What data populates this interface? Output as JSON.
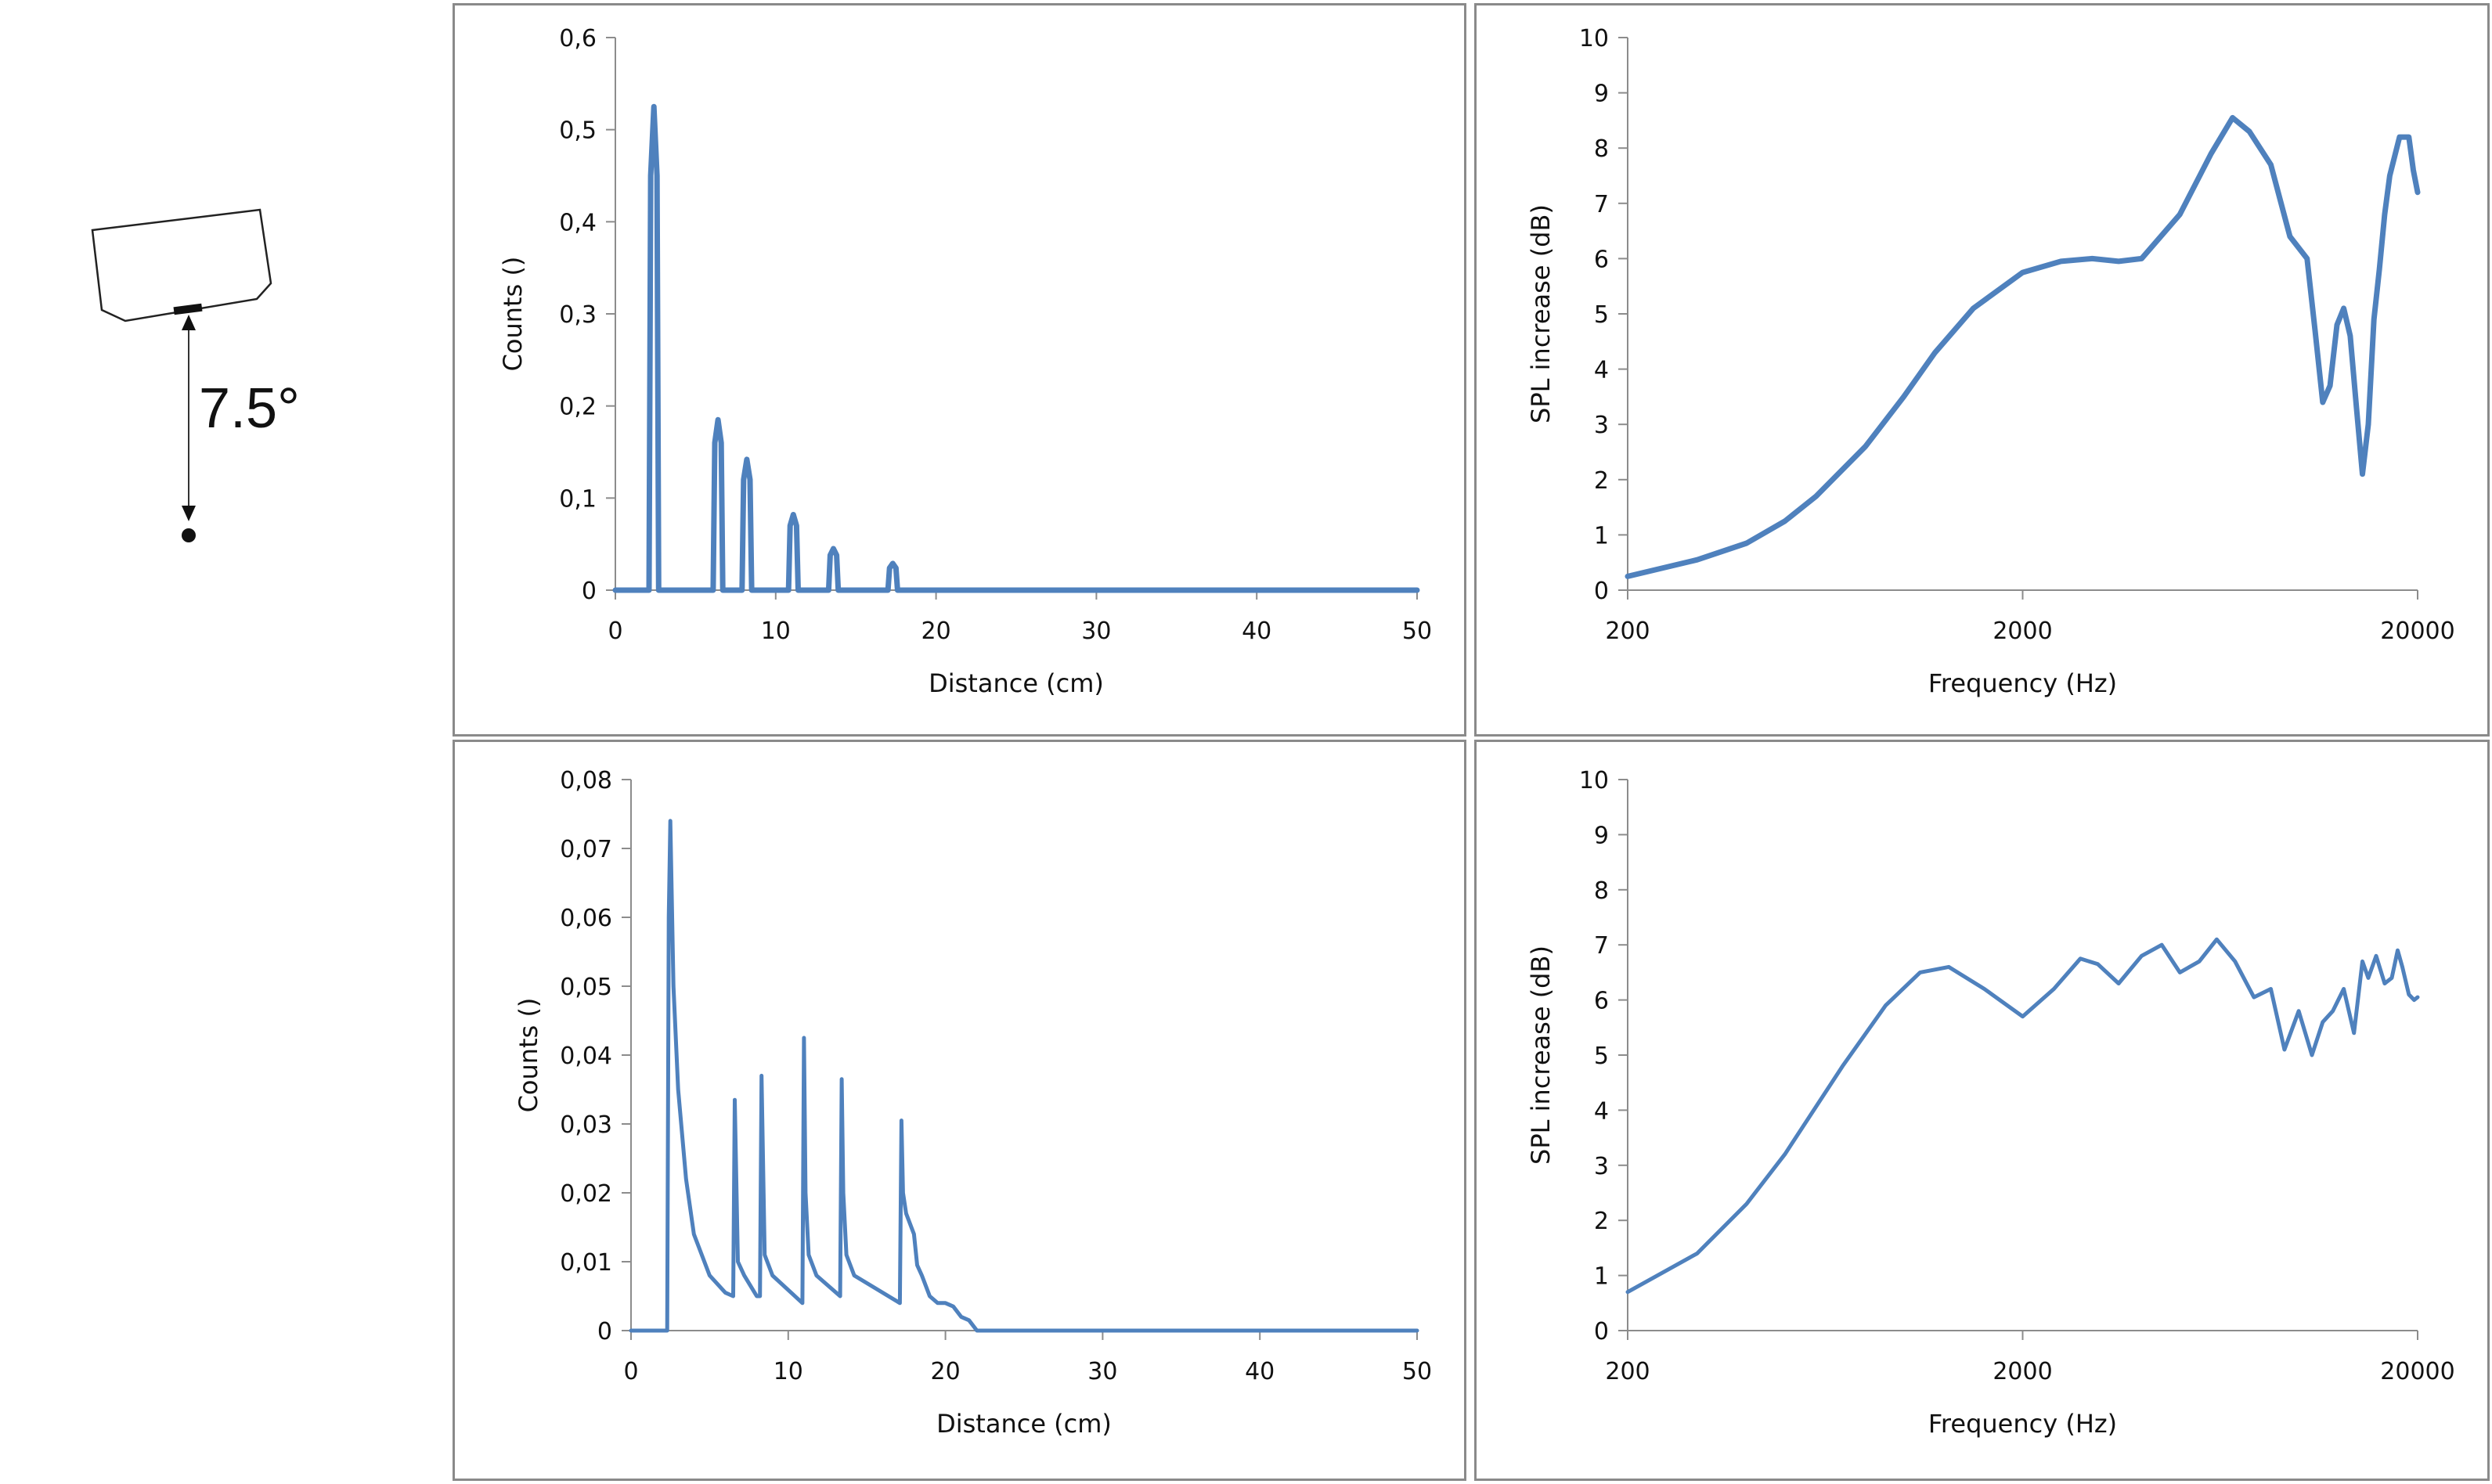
{
  "diagram": {
    "angle_label": "7.5°"
  },
  "chart_data": [
    {
      "id": "top-left",
      "type": "line",
      "xlabel": "Distance (cm)",
      "ylabel": "Counts ()",
      "xlim": [
        0,
        50
      ],
      "ylim": [
        0,
        0.6
      ],
      "xticks": [
        0,
        10,
        20,
        30,
        40,
        50
      ],
      "xtick_labels": [
        "0",
        "10",
        "20",
        "30",
        "40",
        "50"
      ],
      "yticks": [
        0,
        0.1,
        0.2,
        0.3,
        0.4,
        0.5,
        0.6
      ],
      "ytick_labels": [
        "0",
        "0,1",
        "0,2",
        "0,3",
        "0,4",
        "0,5",
        "0,6"
      ],
      "grid": false,
      "color": "#4f81bd",
      "series": [
        {
          "x": [
            0,
            2.1,
            2.2,
            2.4,
            2.6,
            2.7,
            6.1,
            6.2,
            6.4,
            6.6,
            6.7,
            7.9,
            8.0,
            8.2,
            8.4,
            8.5,
            10.8,
            10.9,
            11.1,
            11.3,
            11.4,
            13.3,
            13.4,
            13.6,
            13.8,
            13.9,
            17.0,
            17.1,
            17.3,
            17.5,
            17.6,
            50
          ],
          "y": [
            0,
            0,
            0.45,
            0.525,
            0.45,
            0,
            0,
            0.16,
            0.185,
            0.16,
            0,
            0,
            0.12,
            0.142,
            0.12,
            0,
            0,
            0.07,
            0.082,
            0.07,
            0,
            0,
            0.038,
            0.045,
            0.038,
            0,
            0,
            0.024,
            0.029,
            0.024,
            0,
            0
          ]
        }
      ]
    },
    {
      "id": "top-right",
      "type": "line",
      "xlabel": "Frequency (Hz)",
      "ylabel": "SPL increase (dB)",
      "xscale": "log",
      "xlim": [
        200,
        20000
      ],
      "ylim": [
        0,
        10
      ],
      "xticks": [
        200,
        2000,
        20000
      ],
      "xtick_labels": [
        "200",
        "2000",
        "20000"
      ],
      "yticks": [
        0,
        1,
        2,
        3,
        4,
        5,
        6,
        7,
        8,
        9,
        10
      ],
      "ytick_labels": [
        "0",
        "1",
        "2",
        "3",
        "4",
        "5",
        "6",
        "7",
        "8",
        "9",
        "10"
      ],
      "grid": false,
      "color": "#4f81bd",
      "series": [
        {
          "x": [
            200,
            300,
            400,
            500,
            600,
            800,
            1000,
            1200,
            1500,
            2000,
            2500,
            3000,
            3500,
            4000,
            5000,
            6000,
            6800,
            7500,
            8500,
            9500,
            10500,
            11000,
            11500,
            12000,
            12500,
            13000,
            13500,
            14000,
            14500,
            15000,
            15500,
            16000,
            16500,
            17000,
            18000,
            19000,
            19500,
            20000
          ],
          "y": [
            0.25,
            0.55,
            0.85,
            1.25,
            1.7,
            2.6,
            3.5,
            4.3,
            5.1,
            5.75,
            5.95,
            6.0,
            5.95,
            6.0,
            6.8,
            7.9,
            8.55,
            8.3,
            7.7,
            6.4,
            6.0,
            4.7,
            3.4,
            3.7,
            4.8,
            5.1,
            4.6,
            3.3,
            2.1,
            3.0,
            4.9,
            5.8,
            6.8,
            7.5,
            8.2,
            8.2,
            7.6,
            7.2
          ]
        }
      ]
    },
    {
      "id": "bottom-left",
      "type": "line",
      "xlabel": "Distance (cm)",
      "ylabel": "Counts ()",
      "xlim": [
        0,
        50
      ],
      "ylim": [
        0,
        0.08
      ],
      "xticks": [
        0,
        10,
        20,
        30,
        40,
        50
      ],
      "xtick_labels": [
        "0",
        "10",
        "20",
        "30",
        "40",
        "50"
      ],
      "yticks": [
        0,
        0.01,
        0.02,
        0.03,
        0.04,
        0.05,
        0.06,
        0.07,
        0.08
      ],
      "ytick_labels": [
        "0",
        "0,01",
        "0,02",
        "0,03",
        "0,04",
        "0,05",
        "0,06",
        "0,07",
        "0,08"
      ],
      "grid": false,
      "color": "#4f81bd",
      "series": [
        {
          "x": [
            0,
            2.3,
            2.4,
            2.5,
            2.7,
            3.0,
            3.5,
            4.0,
            5.0,
            6.0,
            6.5,
            6.6,
            6.8,
            7.2,
            8.0,
            8.2,
            8.3,
            8.5,
            9.0,
            10.9,
            11.0,
            11.1,
            11.3,
            11.8,
            13.3,
            13.4,
            13.5,
            13.7,
            14.2,
            17.1,
            17.2,
            17.3,
            17.5,
            18.0,
            18.2,
            18.5,
            19.0,
            19.5,
            20.0,
            20.5,
            21.0,
            21.5,
            22.0,
            50
          ],
          "y": [
            0,
            0,
            0.06,
            0.074,
            0.05,
            0.035,
            0.022,
            0.014,
            0.008,
            0.0055,
            0.005,
            0.0335,
            0.01,
            0.008,
            0.005,
            0.005,
            0.037,
            0.011,
            0.008,
            0.004,
            0.0425,
            0.02,
            0.011,
            0.008,
            0.005,
            0.0365,
            0.02,
            0.011,
            0.008,
            0.004,
            0.0305,
            0.02,
            0.017,
            0.014,
            0.0095,
            0.008,
            0.005,
            0.004,
            0.004,
            0.0035,
            0.002,
            0.0015,
            0,
            0
          ]
        }
      ]
    },
    {
      "id": "bottom-right",
      "type": "line",
      "xlabel": "Frequency (Hz)",
      "ylabel": "SPL increase (dB)",
      "xscale": "log",
      "xlim": [
        200,
        20000
      ],
      "ylim": [
        0,
        10
      ],
      "xticks": [
        200,
        2000,
        20000
      ],
      "xtick_labels": [
        "200",
        "2000",
        "20000"
      ],
      "yticks": [
        0,
        1,
        2,
        3,
        4,
        5,
        6,
        7,
        8,
        9,
        10
      ],
      "ytick_labels": [
        "0",
        "1",
        "2",
        "3",
        "4",
        "5",
        "6",
        "7",
        "8",
        "9",
        "10"
      ],
      "grid": false,
      "color": "#4f81bd",
      "series": [
        {
          "x": [
            200,
            300,
            400,
            500,
            700,
            900,
            1100,
            1300,
            1600,
            2000,
            2400,
            2800,
            3100,
            3500,
            4000,
            4500,
            5000,
            5600,
            6200,
            6900,
            7700,
            8500,
            9200,
            10000,
            10800,
            11500,
            12200,
            13000,
            13800,
            14500,
            15000,
            15700,
            16500,
            17200,
            17800,
            18300,
            19000,
            19600,
            20000
          ],
          "y": [
            0.7,
            1.4,
            2.3,
            3.2,
            4.8,
            5.9,
            6.5,
            6.6,
            6.2,
            5.7,
            6.2,
            6.75,
            6.65,
            6.3,
            6.8,
            7.0,
            6.5,
            6.7,
            7.1,
            6.7,
            6.05,
            6.2,
            5.1,
            5.8,
            5.0,
            5.6,
            5.8,
            6.2,
            5.4,
            6.7,
            6.4,
            6.8,
            6.3,
            6.4,
            6.9,
            6.6,
            6.1,
            6.0,
            6.05
          ]
        }
      ]
    }
  ]
}
